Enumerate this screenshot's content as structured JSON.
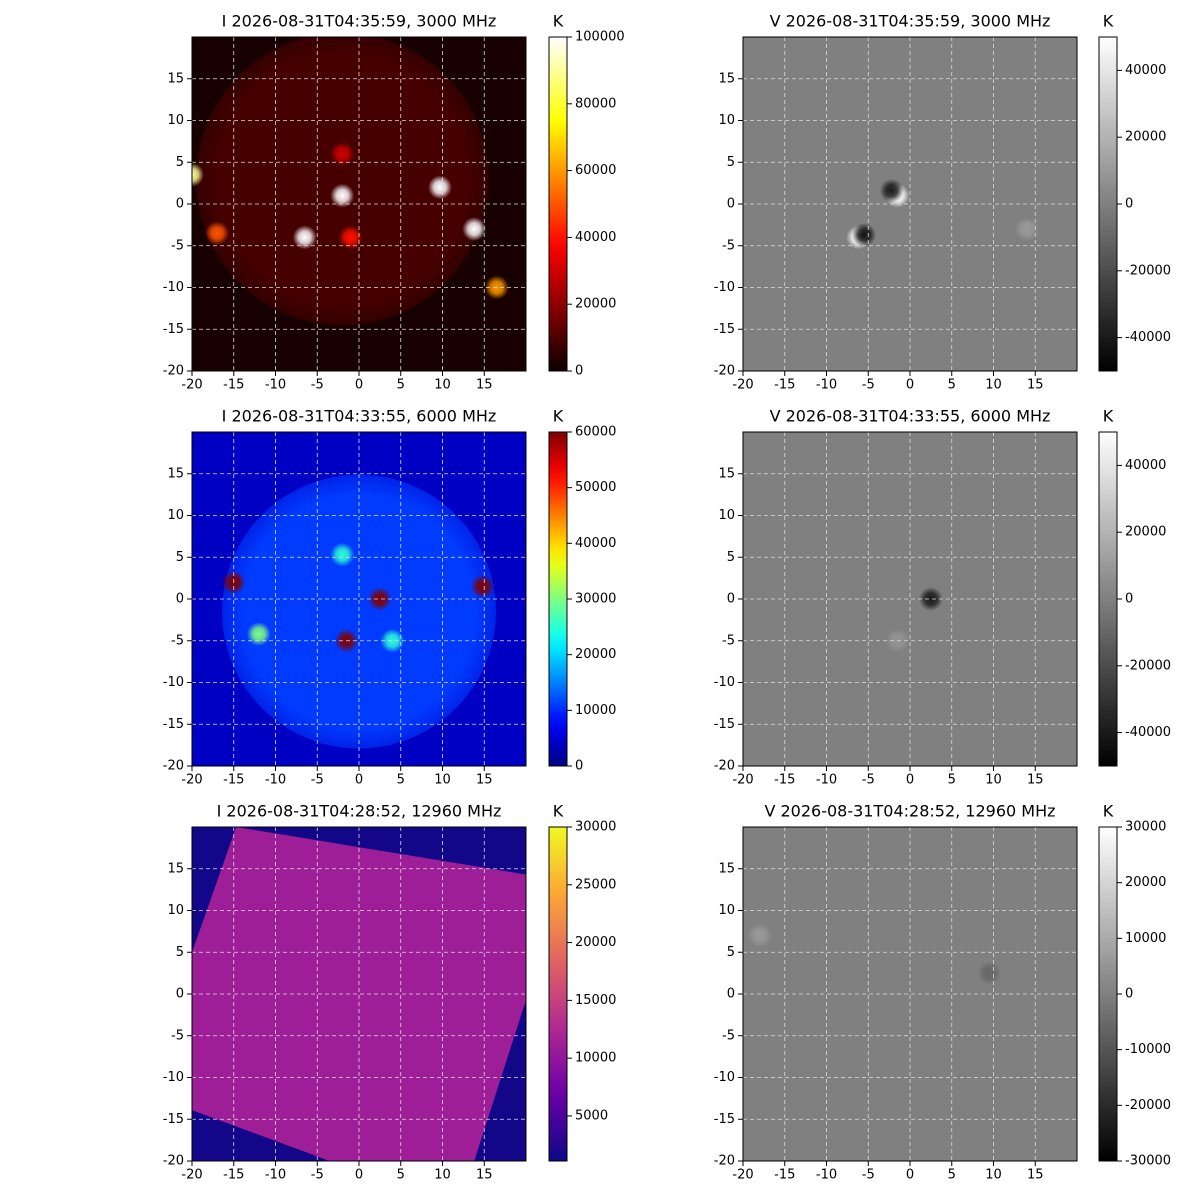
{
  "chart_data": [
    {
      "type": "heatmap",
      "title": "I 2026-08-31T04:35:59, 3000 MHz",
      "colorbar_label": "K",
      "colormap": "hot",
      "xlim": [
        -20,
        20
      ],
      "ylim": [
        -20,
        20
      ],
      "xticks": [
        -20,
        -15,
        -10,
        -5,
        0,
        5,
        10,
        15
      ],
      "yticks": [
        -20,
        -15,
        -10,
        -5,
        0,
        5,
        10,
        15
      ],
      "grid": true,
      "clim": [
        0,
        100000
      ],
      "cticks": [
        0,
        20000,
        40000,
        60000,
        80000,
        100000
      ],
      "background": 2000,
      "disk": {
        "x": -2,
        "y": 3,
        "r": 17.5,
        "value": 9000
      },
      "sources": [
        {
          "x": -20,
          "y": 3.5,
          "value": 90000
        },
        {
          "x": -6.5,
          "y": -4,
          "value": 100000
        },
        {
          "x": -2,
          "y": 1,
          "value": 100000
        },
        {
          "x": 9.7,
          "y": 2,
          "value": 100000
        },
        {
          "x": 13.8,
          "y": -3,
          "value": 100000
        },
        {
          "x": 16.5,
          "y": -10,
          "value": 60000
        },
        {
          "x": -17,
          "y": -3.5,
          "value": 50000
        },
        {
          "x": -1,
          "y": -4,
          "value": 40000
        },
        {
          "x": -2,
          "y": 6,
          "value": 30000
        }
      ]
    },
    {
      "type": "heatmap",
      "title": "V 2026-08-31T04:35:59, 3000 MHz",
      "colorbar_label": "K",
      "colormap": "gray",
      "xlim": [
        -20,
        20
      ],
      "ylim": [
        -20,
        20
      ],
      "xticks": [
        -20,
        -15,
        -10,
        -5,
        0,
        5,
        10,
        15
      ],
      "yticks": [
        -20,
        -15,
        -10,
        -5,
        0,
        5,
        10,
        15
      ],
      "grid": true,
      "clim": [
        -50000,
        50000
      ],
      "cticks": [
        -40000,
        -20000,
        0,
        20000,
        40000
      ],
      "background": 0,
      "sources": [
        {
          "x": -1.5,
          "y": 1,
          "value": 50000
        },
        {
          "x": -2.2,
          "y": 1.6,
          "value": -40000
        },
        {
          "x": -6.2,
          "y": -4,
          "value": 50000
        },
        {
          "x": -5.5,
          "y": -3.7,
          "value": -45000
        },
        {
          "x": 14,
          "y": -3,
          "value": 10000
        }
      ]
    },
    {
      "type": "heatmap",
      "title": "I 2026-08-31T04:33:55, 6000 MHz",
      "colorbar_label": "K",
      "colormap": "jet",
      "xlim": [
        -20,
        20
      ],
      "ylim": [
        -20,
        20
      ],
      "xticks": [
        -20,
        -15,
        -10,
        -5,
        0,
        5,
        10,
        15
      ],
      "yticks": [
        -20,
        -15,
        -10,
        -5,
        0,
        5,
        10,
        15
      ],
      "grid": true,
      "clim": [
        0,
        60000
      ],
      "cticks": [
        0,
        10000,
        20000,
        30000,
        40000,
        50000,
        60000
      ],
      "background": 4000,
      "disk": {
        "x": 0,
        "y": -1.5,
        "r": 16.4,
        "value": 11000
      },
      "sources": [
        {
          "x": -15,
          "y": 2,
          "value": 60000
        },
        {
          "x": -1.5,
          "y": -5,
          "value": 60000
        },
        {
          "x": 2.5,
          "y": 0,
          "value": 60000
        },
        {
          "x": 14.8,
          "y": 1.5,
          "value": 60000
        },
        {
          "x": -12,
          "y": -4.2,
          "value": 30000
        },
        {
          "x": 4,
          "y": -5,
          "value": 25000
        },
        {
          "x": -2,
          "y": 5.3,
          "value": 25000
        }
      ]
    },
    {
      "type": "heatmap",
      "title": "V 2026-08-31T04:33:55, 6000 MHz",
      "colorbar_label": "K",
      "colormap": "gray",
      "xlim": [
        -20,
        20
      ],
      "ylim": [
        -20,
        20
      ],
      "xticks": [
        -20,
        -15,
        -10,
        -5,
        0,
        5,
        10,
        15
      ],
      "yticks": [
        -20,
        -15,
        -10,
        -5,
        0,
        5,
        10,
        15
      ],
      "grid": true,
      "clim": [
        -50000,
        50000
      ],
      "cticks": [
        -40000,
        -20000,
        0,
        20000,
        40000
      ],
      "background": 0,
      "sources": [
        {
          "x": 2.5,
          "y": 0,
          "value": -40000
        },
        {
          "x": -1.5,
          "y": -5,
          "value": 8000
        }
      ]
    },
    {
      "type": "heatmap",
      "title": "I 2026-08-31T04:28:52, 12960 MHz",
      "colorbar_label": "K",
      "colormap": "plasma",
      "xlim": [
        -20,
        20
      ],
      "ylim": [
        -20,
        20
      ],
      "xticks": [
        -20,
        -15,
        -10,
        -5,
        0,
        5,
        10,
        15
      ],
      "yticks": [
        -20,
        -15,
        -10,
        -5,
        0,
        5,
        10,
        15
      ],
      "grid": true,
      "clim": [
        1100,
        30000
      ],
      "cticks": [
        5000,
        10000,
        15000,
        20000,
        25000,
        30000
      ],
      "background": 1500,
      "region": {
        "value": 11000,
        "x": [
          -14.7,
          20,
          20,
          13.8,
          -3.5,
          -20,
          -20
        ],
        "y": [
          20,
          14.3,
          -0.7,
          -20,
          -20,
          -13.9,
          5
        ]
      },
      "sources": []
    },
    {
      "type": "heatmap",
      "title": "V 2026-08-31T04:28:52, 12960 MHz",
      "colorbar_label": "K",
      "colormap": "gray",
      "xlim": [
        -20,
        20
      ],
      "ylim": [
        -20,
        20
      ],
      "xticks": [
        -20,
        -15,
        -10,
        -5,
        0,
        5,
        10,
        15
      ],
      "yticks": [
        -20,
        -15,
        -10,
        -5,
        0,
        5,
        10,
        15
      ],
      "grid": true,
      "clim": [
        -30000,
        30000
      ],
      "cticks": [
        -30000,
        -20000,
        -10000,
        0,
        10000,
        20000,
        30000
      ],
      "background": 0,
      "sources": [
        {
          "x": -18,
          "y": 7,
          "value": 6000
        },
        {
          "x": 9.5,
          "y": 2.5,
          "value": -6000
        }
      ]
    }
  ]
}
